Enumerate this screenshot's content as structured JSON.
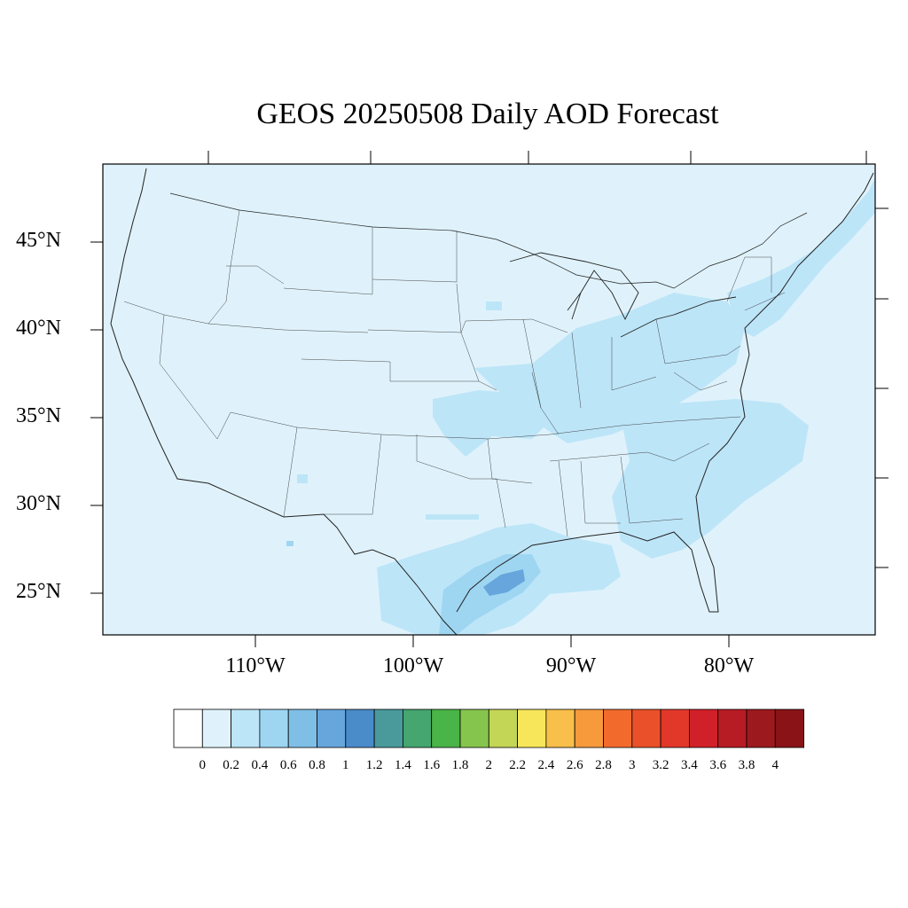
{
  "title": "GEOS 20250508 Daily AOD Forecast",
  "lat_labels": [
    "45°N",
    "40°N",
    "35°N",
    "30°N",
    "25°N"
  ],
  "lon_labels": [
    "110°W",
    "100°W",
    "90°W",
    "80°W"
  ],
  "colorbar": {
    "labels": [
      "0",
      "0.2",
      "0.4",
      "0.6",
      "0.8",
      "1",
      "1.2",
      "1.4",
      "1.6",
      "1.8",
      "2",
      "2.2",
      "2.4",
      "2.6",
      "2.8",
      "3",
      "3.2",
      "3.4",
      "3.6",
      "3.8",
      "4"
    ],
    "colors": [
      "#ffffff",
      "#dff2fb",
      "#bde5f8",
      "#9ed6f2",
      "#7fbfe6",
      "#66a6dc",
      "#4a8bc9",
      "#4a9a9c",
      "#45a670",
      "#49b447",
      "#86c54d",
      "#c3d655",
      "#f8e65a",
      "#f8bf4a",
      "#f79a3c",
      "#f26b2c",
      "#ea5029",
      "#e1382a",
      "#d02029",
      "#b71c24",
      "#9c1a1d",
      "#8a1318"
    ]
  },
  "map": {
    "lon_range": [
      -119.5,
      -71
    ],
    "lat_range": [
      22.7,
      49.3
    ],
    "background_color": "#dff2fb",
    "aod_regions": [
      {
        "name": "gulf-coast-band",
        "level": "0.2-0.4"
      },
      {
        "name": "texas-coast-core",
        "level": "0.4-0.8"
      },
      {
        "name": "ohio-valley",
        "level": "0.2-0.4"
      },
      {
        "name": "southeast-atlantic",
        "level": "0.2-0.4"
      },
      {
        "name": "northeast-coast",
        "level": "0.2-0.4"
      },
      {
        "name": "southern-plains",
        "level": "0.2-0.4"
      }
    ]
  }
}
